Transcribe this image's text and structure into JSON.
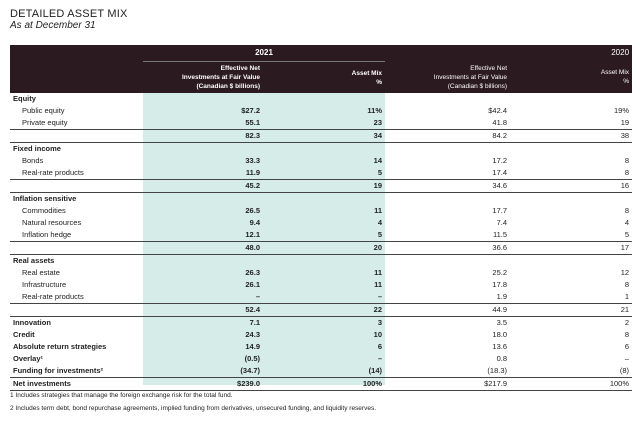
{
  "header": {
    "title": "DETAILED ASSET MIX",
    "subtitle": "As at December 31"
  },
  "table": {
    "years": [
      "2021",
      "2020"
    ],
    "columns": [
      [
        "Effective Net",
        "Investments at Fair Value",
        "(Canadian $ billions)"
      ],
      [
        "Asset Mix",
        "%"
      ],
      [
        "Effective Net",
        "Investments at Fair Value",
        "(Canadian $ billions)"
      ],
      [
        "Asset Mix",
        "%"
      ]
    ],
    "groups": [
      {
        "title": "Equity",
        "items": [
          [
            "Public equity",
            "$27.2",
            "11%",
            "$42.4",
            "19%"
          ],
          [
            "Private equity",
            "55.1",
            "23",
            "41.8",
            "19"
          ]
        ],
        "total": [
          "82.3",
          "34",
          "84.2",
          "38"
        ]
      },
      {
        "title": "Fixed income",
        "items": [
          [
            "Bonds",
            "33.3",
            "14",
            "17.2",
            "8"
          ],
          [
            "Real-rate products",
            "11.9",
            "5",
            "17.4",
            "8"
          ]
        ],
        "total": [
          "45.2",
          "19",
          "34.6",
          "16"
        ]
      },
      {
        "title": "Inflation sensitive",
        "items": [
          [
            "Commodities",
            "26.5",
            "11",
            "17.7",
            "8"
          ],
          [
            "Natural resources",
            "9.4",
            "4",
            "7.4",
            "4"
          ],
          [
            "Inflation hedge",
            "12.1",
            "5",
            "11.5",
            "5"
          ]
        ],
        "total": [
          "48.0",
          "20",
          "36.6",
          "17"
        ]
      },
      {
        "title": "Real assets",
        "items": [
          [
            "Real estate",
            "26.3",
            "11",
            "25.2",
            "12"
          ],
          [
            "Infrastructure",
            "26.1",
            "11",
            "17.8",
            "8"
          ],
          [
            "Real-rate products",
            "–",
            "–",
            "1.9",
            "1"
          ]
        ],
        "total": [
          "52.4",
          "22",
          "44.9",
          "21"
        ]
      }
    ],
    "rows": [
      [
        "Innovation",
        "7.1",
        "3",
        "3.5",
        "2"
      ],
      [
        "Credit",
        "24.3",
        "10",
        "18.0",
        "8"
      ],
      [
        "Absolute return strategies",
        "14.9",
        "6",
        "13.6",
        "6"
      ],
      [
        "Overlay¹",
        "(0.5)",
        "–",
        "0.8",
        "–"
      ],
      [
        "Funding for investments²",
        "(34.7)",
        "(14)",
        "(18.3)",
        "(8)"
      ]
    ],
    "net": [
      "Net investments",
      "$239.0",
      "100%",
      "$217.9",
      "100%"
    ]
  },
  "footnotes": [
    "1 Includes strategies that manage the foreign exchange risk for the total fund.",
    "2 Includes term debt, bond repurchase agreements, implied funding from derivatives, unsecured funding, and liquidity reserves."
  ]
}
